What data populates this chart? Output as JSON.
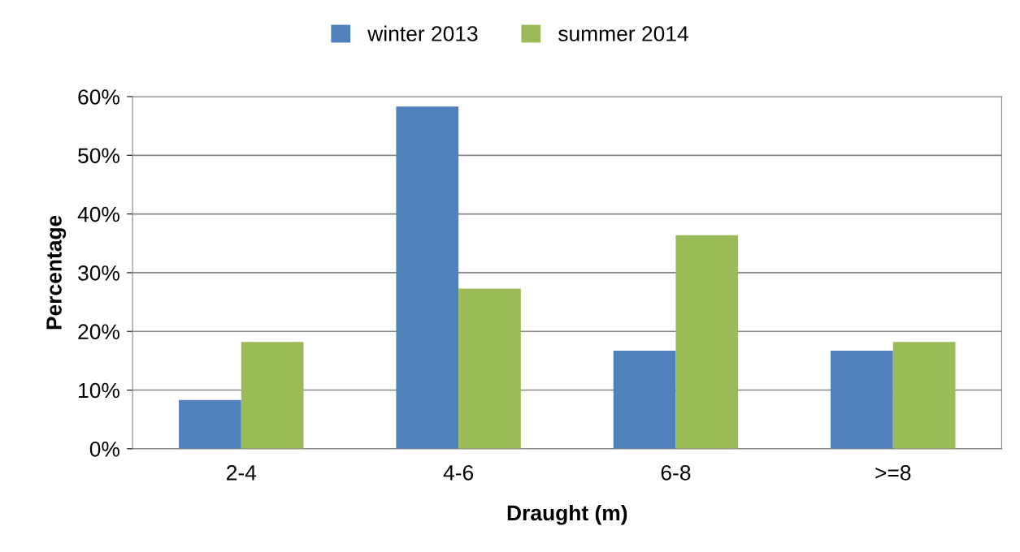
{
  "chart_data": {
    "type": "bar",
    "xlabel": "Draught (m)",
    "ylabel": "Percentage",
    "categories": [
      "2-4",
      "4-6",
      "6-8",
      ">=8"
    ],
    "series": [
      {
        "name": "winter 2013",
        "color": "#4f81bd",
        "values": [
          8.3,
          58.3,
          16.7,
          16.7
        ]
      },
      {
        "name": "summer 2014",
        "color": "#9bbb59",
        "values": [
          18.2,
          27.3,
          36.4,
          18.2
        ]
      }
    ],
    "ylim": [
      0,
      60
    ],
    "yticks": [
      {
        "value": 0,
        "label": "0%"
      },
      {
        "value": 10,
        "label": "10%"
      },
      {
        "value": 20,
        "label": "20%"
      },
      {
        "value": 30,
        "label": "30%"
      },
      {
        "value": 40,
        "label": "40%"
      },
      {
        "value": 50,
        "label": "50%"
      },
      {
        "value": 60,
        "label": "60%"
      }
    ],
    "grid": "y",
    "legend": "top"
  }
}
